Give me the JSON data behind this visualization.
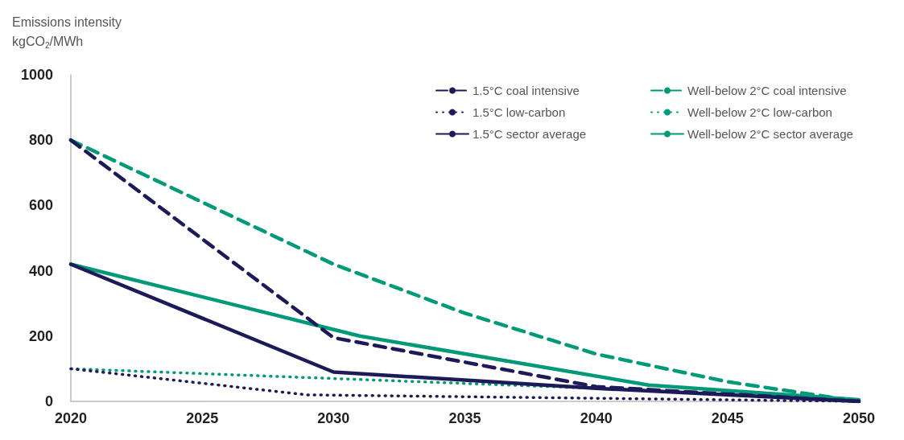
{
  "chart_data": {
    "type": "line",
    "ylabel": "Emissions intensity\nkgCO$_{2}$/MWh",
    "xlim": [
      2020,
      2050
    ],
    "xticks": [
      2020,
      2025,
      2030,
      2035,
      2040,
      2045,
      2050
    ],
    "ylim": [
      0,
      1000
    ],
    "yticks": [
      0,
      200,
      400,
      600,
      800,
      1000
    ],
    "grid": false,
    "legend": "top right",
    "marker": "none",
    "series": [
      {
        "name": "1.5°C coal intensive",
        "color": "#1d1a5a",
        "line_style": "dashed",
        "x": [
          2020,
          2030,
          2040,
          2050
        ],
        "values": [
          800,
          195,
          45,
          0
        ]
      },
      {
        "name": "1.5°C low-carbon",
        "color": "#1d1a5a",
        "line_style": "dotted",
        "x": [
          2020,
          2029,
          2050
        ],
        "values": [
          100,
          20,
          0
        ]
      },
      {
        "name": "1.5°C sector average",
        "color": "#1d1a5a",
        "line_style": "solid",
        "x": [
          2020,
          2030,
          2035,
          2040,
          2050
        ],
        "values": [
          420,
          90,
          65,
          40,
          0
        ]
      },
      {
        "name": "Well-below 2°C coal intensive",
        "color": "#009a78",
        "line_style": "dashed",
        "x": [
          2020,
          2030,
          2035,
          2040,
          2045,
          2050
        ],
        "values": [
          800,
          420,
          270,
          145,
          60,
          0
        ]
      },
      {
        "name": "Well-below 2°C low-carbon",
        "color": "#009a78",
        "line_style": "dotted",
        "x": [
          2020,
          2030,
          2040,
          2050
        ],
        "values": [
          100,
          70,
          40,
          5
        ]
      },
      {
        "name": "Well-below 2°C sector average",
        "color": "#009a78",
        "line_style": "solid",
        "x": [
          2020,
          2031,
          2042,
          2050
        ],
        "values": [
          420,
          200,
          50,
          5
        ]
      }
    ]
  }
}
